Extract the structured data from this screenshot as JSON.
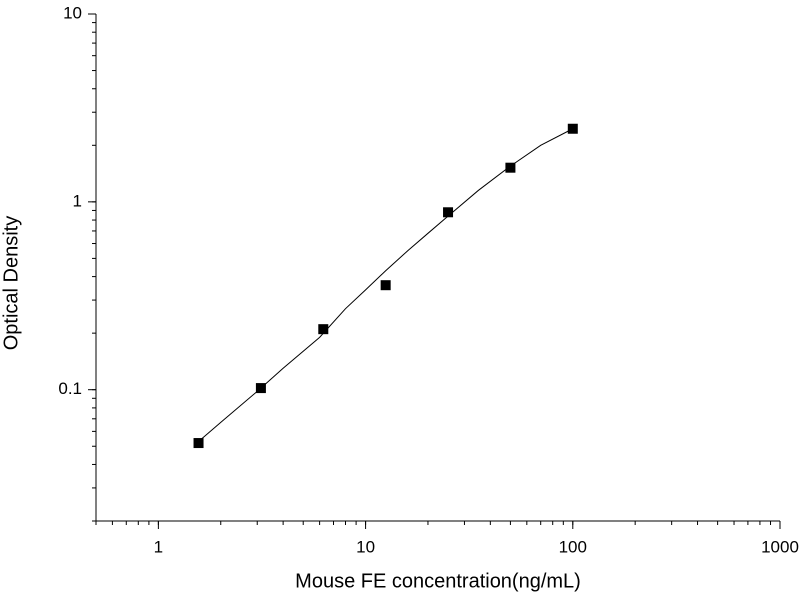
{
  "chart_data": {
    "type": "scatter",
    "x_label": "Mouse FE concentration(ng/mL)",
    "y_label": "Optical Density",
    "xscale": "log",
    "yscale": "log",
    "xlim": [
      0.5,
      1000
    ],
    "ylim": [
      0.02,
      10
    ],
    "xticks": [
      1,
      10,
      100,
      1000
    ],
    "yticks": [
      0.1,
      1,
      10
    ],
    "series": [
      {
        "type": "scatter",
        "color": "#000000",
        "x": [
          1.5625,
          3.125,
          6.25,
          12.5,
          25,
          50,
          100
        ],
        "values": [
          0.052,
          0.102,
          0.21,
          0.36,
          0.88,
          1.52,
          2.45
        ]
      },
      {
        "type": "line",
        "color": "#000000",
        "x": [
          1.5625,
          2,
          3,
          4,
          6,
          8,
          10,
          12.5,
          16,
          20,
          25,
          35,
          50,
          70,
          100
        ],
        "values": [
          0.053,
          0.067,
          0.098,
          0.13,
          0.19,
          0.27,
          0.34,
          0.43,
          0.55,
          0.68,
          0.84,
          1.15,
          1.55,
          2.0,
          2.45
        ]
      }
    ]
  }
}
